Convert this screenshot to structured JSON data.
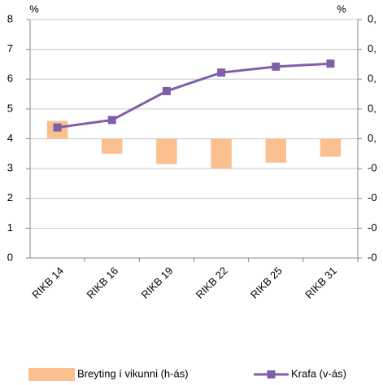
{
  "chart_data": {
    "type": "combo",
    "left_unit": "%",
    "right_unit": "%",
    "categories": [
      "RIKB 14",
      "RIKB 16",
      "RIKB 19",
      "RIKB 22",
      "RIKB 25",
      "RIKB 31"
    ],
    "series": [
      {
        "name": "Breyting í vikunni (h-ás)",
        "type": "bar",
        "axis": "y2",
        "color": "#fac090",
        "values": [
          0.06,
          -0.05,
          -0.085,
          -0.1,
          -0.08,
          -0.06
        ]
      },
      {
        "name": "Krafa (v-ás)",
        "type": "line",
        "color": "#7f60a8",
        "values": [
          4.38,
          4.63,
          5.6,
          6.22,
          6.42,
          6.52
        ]
      }
    ],
    "ylim": [
      0,
      8
    ],
    "yticks": [
      0,
      1,
      2,
      3,
      4,
      5,
      6,
      7,
      8
    ],
    "y2lim": [
      -0.4,
      0.4
    ],
    "y2ticks": [
      {
        "value": -0.4,
        "label": "-0"
      },
      {
        "value": -0.3,
        "label": "-0"
      },
      {
        "value": -0.2,
        "label": "-0"
      },
      {
        "value": -0.1,
        "label": "-0"
      },
      {
        "value": 0.0,
        "label": "0,"
      },
      {
        "value": 0.1,
        "label": "0,"
      },
      {
        "value": 0.2,
        "label": "0,"
      },
      {
        "value": 0.3,
        "label": "0,"
      },
      {
        "value": 0.4,
        "label": "0,"
      }
    ],
    "grid": true
  }
}
